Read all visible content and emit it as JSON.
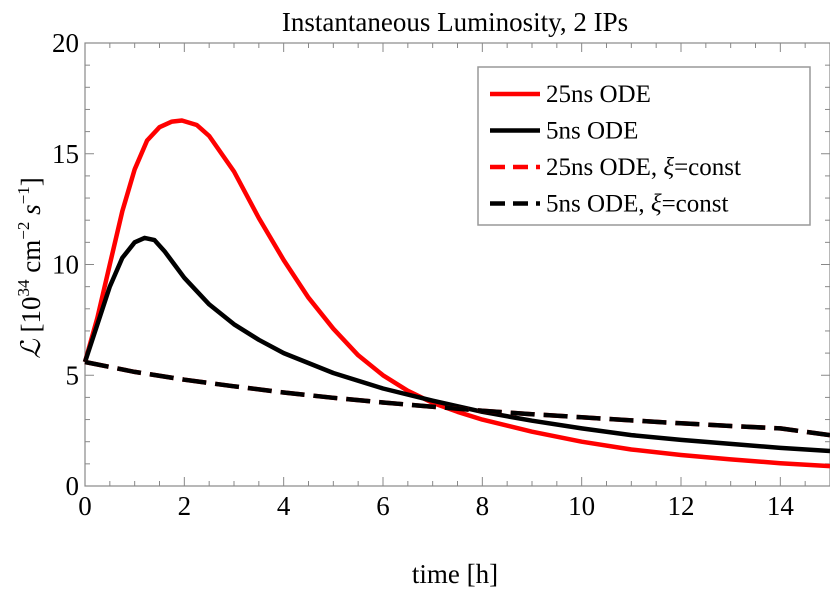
{
  "chart_data": {
    "type": "line",
    "title": "Instantaneous Luminosity, 2 IPs",
    "xlabel": "time [h]",
    "ylabel_parts": {
      "symbol": "ℒ",
      "text": " [10",
      "exp1": "34",
      "unit1": " cm",
      "exp2": "−2",
      "unit2": " s",
      "exp3": "−1",
      "close": "]"
    },
    "xlim": [
      0,
      15
    ],
    "ylim": [
      0,
      20
    ],
    "x_ticks": [
      0,
      2,
      4,
      6,
      8,
      10,
      12,
      14
    ],
    "y_ticks": [
      0,
      5,
      10,
      15,
      20
    ],
    "legend_position": "top-right",
    "series": [
      {
        "name_parts": [
          "25ns ODE"
        ],
        "color": "#ff0000",
        "dash": "solid",
        "x": [
          0,
          0.25,
          0.5,
          0.75,
          1.0,
          1.25,
          1.5,
          1.75,
          1.95,
          2.25,
          2.5,
          3,
          3.5,
          4,
          4.5,
          5,
          5.5,
          6,
          6.5,
          7,
          7.5,
          8,
          9,
          10,
          11,
          12,
          13,
          14,
          15
        ],
        "y": [
          5.6,
          7.6,
          10.0,
          12.4,
          14.3,
          15.6,
          16.2,
          16.45,
          16.5,
          16.3,
          15.8,
          14.2,
          12.1,
          10.2,
          8.5,
          7.1,
          5.9,
          5.0,
          4.3,
          3.75,
          3.35,
          3.0,
          2.45,
          2.0,
          1.65,
          1.4,
          1.2,
          1.03,
          0.9
        ]
      },
      {
        "name_parts": [
          "5ns ODE"
        ],
        "color": "#000000",
        "dash": "solid",
        "x": [
          0,
          0.25,
          0.5,
          0.75,
          1.0,
          1.2,
          1.4,
          1.6,
          1.8,
          2.0,
          2.5,
          3,
          3.5,
          4,
          5,
          6,
          7,
          8,
          9,
          10,
          11,
          12,
          13,
          14,
          15
        ],
        "y": [
          5.6,
          7.3,
          9.0,
          10.3,
          11.0,
          11.2,
          11.1,
          10.6,
          10.0,
          9.4,
          8.2,
          7.3,
          6.6,
          6.0,
          5.1,
          4.4,
          3.85,
          3.35,
          2.95,
          2.6,
          2.3,
          2.08,
          1.9,
          1.72,
          1.58
        ]
      },
      {
        "name_parts": [
          "25ns ODE, ",
          "ξ",
          "=const"
        ],
        "color": "#ff0000",
        "dash": "dashed",
        "x": [
          0,
          1,
          2,
          3,
          4,
          5,
          6,
          7,
          8,
          9,
          10,
          11,
          12,
          13,
          14,
          15
        ],
        "y": [
          5.6,
          5.15,
          4.8,
          4.5,
          4.22,
          3.98,
          3.77,
          3.58,
          3.4,
          3.24,
          3.1,
          2.96,
          2.83,
          2.71,
          2.6,
          2.3
        ]
      },
      {
        "name_parts": [
          "5ns ODE, ",
          "ξ",
          "=const"
        ],
        "color": "#000000",
        "dash": "dashed",
        "x": [
          0,
          1,
          2,
          3,
          4,
          5,
          6,
          7,
          8,
          9,
          10,
          11,
          12,
          13,
          14,
          15
        ],
        "y": [
          5.6,
          5.15,
          4.8,
          4.5,
          4.22,
          3.98,
          3.77,
          3.58,
          3.4,
          3.24,
          3.1,
          2.96,
          2.83,
          2.71,
          2.6,
          2.3
        ]
      }
    ]
  }
}
